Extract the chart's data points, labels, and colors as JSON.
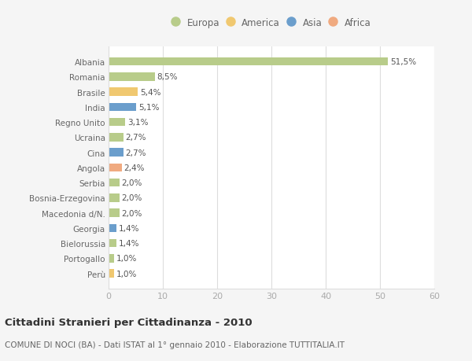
{
  "categories": [
    "Perù",
    "Portogallo",
    "Bielorussia",
    "Georgia",
    "Macedonia d/N.",
    "Bosnia-Erzegovina",
    "Serbia",
    "Angola",
    "Cina",
    "Ucraina",
    "Regno Unito",
    "India",
    "Brasile",
    "Romania",
    "Albania"
  ],
  "values": [
    1.0,
    1.0,
    1.4,
    1.4,
    2.0,
    2.0,
    2.0,
    2.4,
    2.7,
    2.7,
    3.1,
    5.1,
    5.4,
    8.5,
    51.5
  ],
  "labels": [
    "1,0%",
    "1,0%",
    "1,4%",
    "1,4%",
    "2,0%",
    "2,0%",
    "2,0%",
    "2,4%",
    "2,7%",
    "2,7%",
    "3,1%",
    "5,1%",
    "5,4%",
    "8,5%",
    "51,5%"
  ],
  "colors": [
    "#f0c870",
    "#b8cc8a",
    "#b8cc8a",
    "#6b9ecc",
    "#b8cc8a",
    "#b8cc8a",
    "#b8cc8a",
    "#f0aa80",
    "#6b9ecc",
    "#b8cc8a",
    "#b8cc8a",
    "#6b9ecc",
    "#f0c870",
    "#b8cc8a",
    "#b8cc8a"
  ],
  "legend": [
    {
      "label": "Europa",
      "color": "#b8cc8a"
    },
    {
      "label": "America",
      "color": "#f0c870"
    },
    {
      "label": "Asia",
      "color": "#6b9ecc"
    },
    {
      "label": "Africa",
      "color": "#f0aa80"
    }
  ],
  "title": "Cittadini Stranieri per Cittadinanza - 2010",
  "subtitle": "COMUNE DI NOCI (BA) - Dati ISTAT al 1° gennaio 2010 - Elaborazione TUTTITALIA.IT",
  "xlim": [
    0,
    60
  ],
  "xticks": [
    0,
    10,
    20,
    30,
    40,
    50,
    60
  ],
  "background_color": "#f5f5f5",
  "plot_background": "#ffffff",
  "grid_color": "#dddddd",
  "bar_height": 0.55
}
